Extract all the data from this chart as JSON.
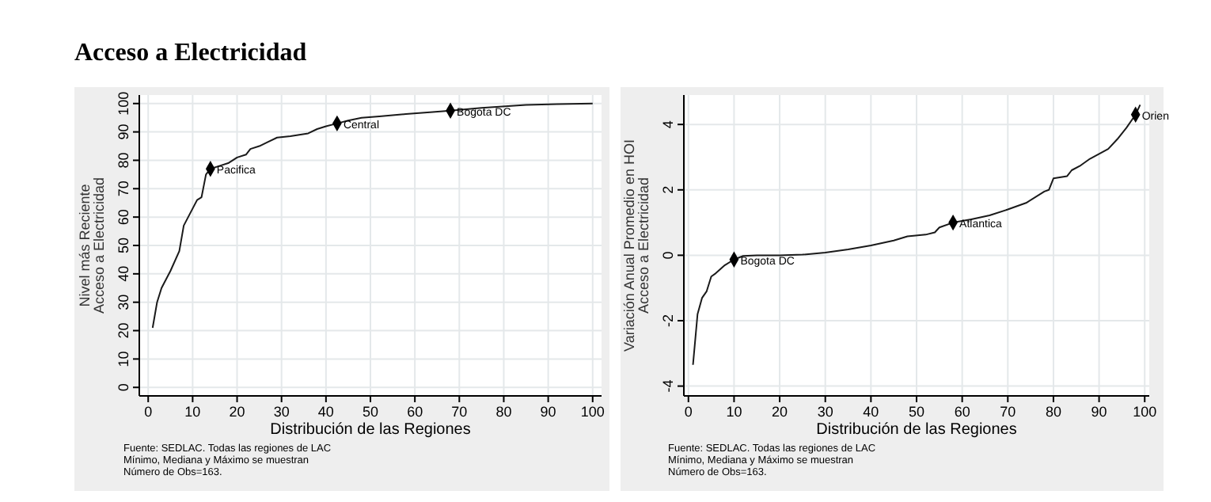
{
  "chart_data": [
    {
      "type": "line",
      "title": "Acceso a Electricidad",
      "xlabel": "Distribución de las Regiones",
      "ylabel": "Nivel más Reciente\nAcceso a Electricidad",
      "xlim": [
        -2,
        102
      ],
      "ylim": [
        -3,
        103
      ],
      "xticks": [
        0,
        10,
        20,
        30,
        40,
        50,
        60,
        70,
        80,
        90,
        100
      ],
      "yticks": [
        0,
        10,
        20,
        30,
        40,
        50,
        60,
        70,
        80,
        90,
        100
      ],
      "grid": true,
      "series": [
        {
          "color": "#1a1a1a",
          "marker": "none",
          "x": [
            1,
            2,
            3,
            5,
            7,
            8,
            10,
            11,
            12,
            13,
            14,
            16,
            18,
            20,
            22,
            23,
            25,
            27,
            29,
            32,
            36,
            38,
            40,
            42.5,
            45,
            48,
            52,
            58,
            64,
            68,
            75,
            85,
            92,
            100
          ],
          "values": [
            21,
            30,
            35,
            41,
            48,
            57,
            63,
            66,
            67,
            75,
            77,
            78,
            79,
            81,
            82,
            84,
            85,
            86.5,
            88,
            88.5,
            89.5,
            91,
            92,
            93,
            94,
            95,
            95.5,
            96.3,
            97,
            97.5,
            98.5,
            99.5,
            99.8,
            100
          ]
        },
        {
          "type": "scatter",
          "color": "#000000",
          "marker": "diamond",
          "x": [
            14,
            42.5,
            68
          ],
          "values": [
            77,
            93,
            97.5
          ]
        }
      ],
      "annotations": [
        {
          "text": "Pacifica",
          "x": 14,
          "y": 77
        },
        {
          "text": "Central",
          "x": 42.5,
          "y": 93
        },
        {
          "text": "Bogota DC",
          "x": 68,
          "y": 97.5
        },
        "Fuente: SEDLAC. Todas las regiones de LAC",
        "Mínimo, Mediana y Máximo se muestran",
        "Número de Obs=163."
      ]
    },
    {
      "type": "line",
      "xlabel": "Distribución de las Regiones",
      "ylabel": "Variación Anual Promedio en HOI\nAcceso a Electricidad",
      "xlim": [
        -1,
        101
      ],
      "ylim": [
        -4.3,
        4.9
      ],
      "xticks": [
        0,
        10,
        20,
        30,
        40,
        50,
        60,
        70,
        80,
        90,
        100
      ],
      "yticks": [
        -4,
        -2,
        0,
        2,
        4
      ],
      "grid": true,
      "series": [
        {
          "color": "#1a1a1a",
          "marker": "none",
          "x": [
            1,
            2,
            3,
            4,
            5,
            6,
            8,
            10,
            12,
            15,
            20,
            25,
            30,
            35,
            40,
            45,
            48,
            52,
            54,
            55,
            58,
            62,
            66,
            70,
            74,
            78,
            79,
            80,
            83,
            84,
            86,
            88,
            90,
            92,
            94,
            96,
            98,
            99
          ],
          "values": [
            -3.35,
            -1.8,
            -1.3,
            -1.1,
            -0.65,
            -0.55,
            -0.3,
            -0.13,
            -0.02,
            0,
            0,
            0.02,
            0.08,
            0.18,
            0.3,
            0.45,
            0.58,
            0.63,
            0.7,
            0.85,
            1,
            1.1,
            1.22,
            1.4,
            1.6,
            1.95,
            2,
            2.35,
            2.42,
            2.6,
            2.75,
            2.95,
            3.1,
            3.25,
            3.55,
            3.9,
            4.3,
            4.6
          ]
        },
        {
          "type": "scatter",
          "color": "#000000",
          "marker": "diamond",
          "x": [
            10,
            58,
            98
          ],
          "values": [
            -0.13,
            1,
            4.3
          ]
        }
      ],
      "annotations": [
        {
          "text": "Bogota DC",
          "x": 10,
          "y": -0.13
        },
        {
          "text": "Atlantica",
          "x": 58,
          "y": 1
        },
        {
          "text": "Orien",
          "x": 98,
          "y": 4.3
        },
        "Fuente: SEDLAC. Todas las regiones de LAC",
        "Mínimo, Mediana y Máximo se muestran",
        "Número de Obs=163."
      ]
    }
  ]
}
